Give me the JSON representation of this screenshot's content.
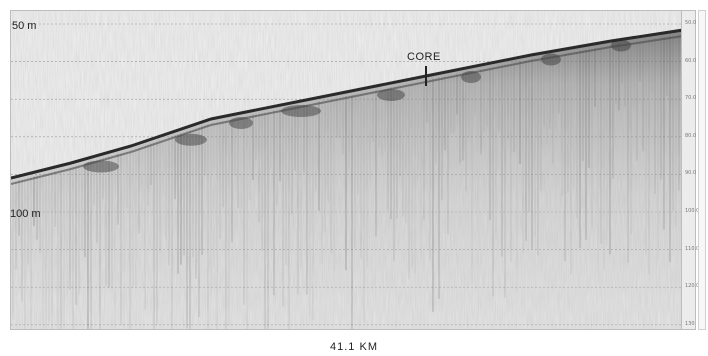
{
  "labels": {
    "depth_top": "50 m",
    "depth_bottom": "100 m",
    "core": "CORE",
    "distance": "41.1 KM"
  },
  "scale": {
    "ticks": [
      "50.0",
      "60.0",
      "70.0",
      "80.0",
      "90.0",
      "100.0",
      "110.0",
      "120.0",
      "130"
    ]
  },
  "colors": {
    "background": "#f1f1f1",
    "seafloor": "#2a2a2a",
    "sediment": "#6a6a6a",
    "water_line": "#bdbdbd"
  }
}
